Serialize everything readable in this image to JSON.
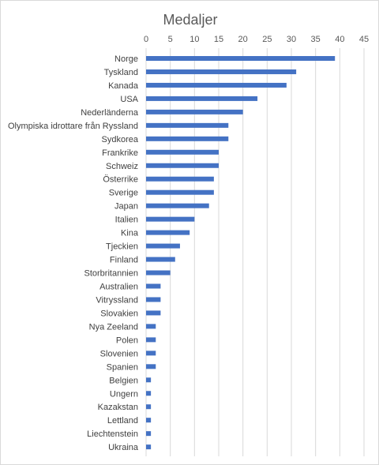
{
  "chart_data": {
    "type": "bar",
    "orientation": "horizontal",
    "title": "Medaljer",
    "xlabel": "",
    "ylabel": "",
    "xlim": [
      0,
      45
    ],
    "xticks": [
      0,
      5,
      10,
      15,
      20,
      25,
      30,
      35,
      40,
      45
    ],
    "axis_position": "top",
    "grid": true,
    "bar_color": "#4472c4",
    "grid_color": "#d9d9d9",
    "categories": [
      "Norge",
      "Tyskland",
      "Kanada",
      "USA",
      "Nederländerna",
      "Olympiska idrottare från Ryssland",
      "Sydkorea",
      "Frankrike",
      "Schweiz",
      "Österrike",
      "Sverige",
      "Japan",
      "Italien",
      "Kina",
      "Tjeckien",
      "Finland",
      "Storbritannien",
      "Australien",
      "Vitryssland",
      "Slovakien",
      "Nya Zeeland",
      "Polen",
      "Slovenien",
      "Spanien",
      "Belgien",
      "Ungern",
      "Kazakstan",
      "Lettland",
      "Liechtenstein",
      "Ukraina"
    ],
    "values": [
      39,
      31,
      29,
      23,
      20,
      17,
      17,
      15,
      15,
      14,
      14,
      13,
      10,
      9,
      7,
      6,
      5,
      3,
      3,
      3,
      2,
      2,
      2,
      2,
      1,
      1,
      1,
      1,
      1,
      1
    ]
  }
}
